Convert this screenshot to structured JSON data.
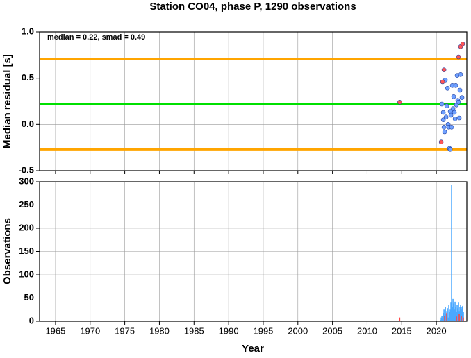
{
  "chart_data": [
    {
      "type": "scatter",
      "title": "Station CO04, phase P, 1290 observations",
      "y_label": "Median residual [s]",
      "annotation": "median = 0.22, smad = 0.49",
      "xlim": [
        1962.7,
        2024.4
      ],
      "ylim": [
        -0.5,
        1.0
      ],
      "yticks": [
        {
          "value": -0.5,
          "label": "-0.5"
        },
        {
          "value": 0,
          "label": "0.0"
        },
        {
          "value": 0.5,
          "label": "0.5"
        },
        {
          "value": 1,
          "label": "1.0"
        }
      ],
      "grid": true,
      "reference_lines": [
        {
          "value": 0.22,
          "color": "#00e000"
        },
        {
          "value": 0.71,
          "color": "#ffa500"
        },
        {
          "value": -0.27,
          "color": "#ffa500"
        }
      ],
      "series": [
        {
          "color": "#6fa0ff",
          "x": [
            2020.8,
            2021.0,
            2021.0,
            2021.1,
            2021.2,
            2021.3,
            2021.4,
            2021.5,
            2021.6,
            2021.7,
            2021.8,
            2021.9,
            2022.0,
            2022.0,
            2022.1,
            2022.2,
            2022.3,
            2022.4,
            2022.5,
            2022.6,
            2022.7,
            2022.8,
            2022.9,
            2023.0,
            2023.1,
            2023.2,
            2023.3,
            2023.4,
            2023.5,
            2023.7
          ],
          "values": [
            0.22,
            0.05,
            0.13,
            -0.03,
            -0.08,
            0.48,
            0.08,
            0.2,
            0.39,
            0.0,
            -0.03,
            -0.26,
            -0.27,
            0.14,
            0.1,
            -0.03,
            0.42,
            0.17,
            0.3,
            0.13,
            0.06,
            0.42,
            0.21,
            0.53,
            0.26,
            0.24,
            0.07,
            0.37,
            0.54,
            0.29
          ]
        },
        {
          "color": "#ff5555",
          "x": [
            2014.7,
            2020.7,
            2020.9,
            2021.1,
            2023.2,
            2023.5,
            2023.8
          ],
          "values": [
            0.24,
            -0.19,
            0.46,
            0.59,
            0.73,
            0.84,
            0.87
          ]
        }
      ]
    },
    {
      "type": "bar",
      "y_label": "Observations",
      "x_label": "Year",
      "xlim": [
        1962.7,
        2024.4
      ],
      "ylim": [
        0,
        300
      ],
      "xticks": [
        1965,
        1970,
        1975,
        1980,
        1985,
        1990,
        1995,
        2000,
        2005,
        2010,
        2015,
        2020
      ],
      "yticks": [
        0,
        50,
        100,
        150,
        200,
        250,
        300
      ],
      "grid": true,
      "series": [
        {
          "color": "#4aa8ff",
          "x": [
            2020.6,
            2020.7,
            2020.8,
            2020.9,
            2021.0,
            2021.1,
            2021.2,
            2021.3,
            2021.4,
            2021.5,
            2021.6,
            2021.7,
            2021.8,
            2021.9,
            2022.0,
            2022.1,
            2022.2,
            2022.3,
            2022.4,
            2022.5,
            2022.6,
            2022.7,
            2022.8,
            2022.9,
            2023.0,
            2023.1,
            2023.2,
            2023.3,
            2023.4,
            2023.5,
            2023.6,
            2023.7,
            2023.8,
            2023.9
          ],
          "values": [
            3,
            8,
            12,
            5,
            18,
            25,
            10,
            30,
            15,
            22,
            28,
            8,
            35,
            20,
            25,
            40,
            293,
            30,
            48,
            38,
            25,
            42,
            30,
            20,
            35,
            28,
            40,
            22,
            30,
            35,
            25,
            30,
            33,
            20
          ]
        },
        {
          "color": "#ff4444",
          "x": [
            2014.7,
            2021.2,
            2021.5,
            2022.9,
            2023.3,
            2023.6,
            2023.9
          ],
          "values": [
            8,
            12,
            18,
            10,
            15,
            12,
            8
          ]
        }
      ]
    }
  ]
}
